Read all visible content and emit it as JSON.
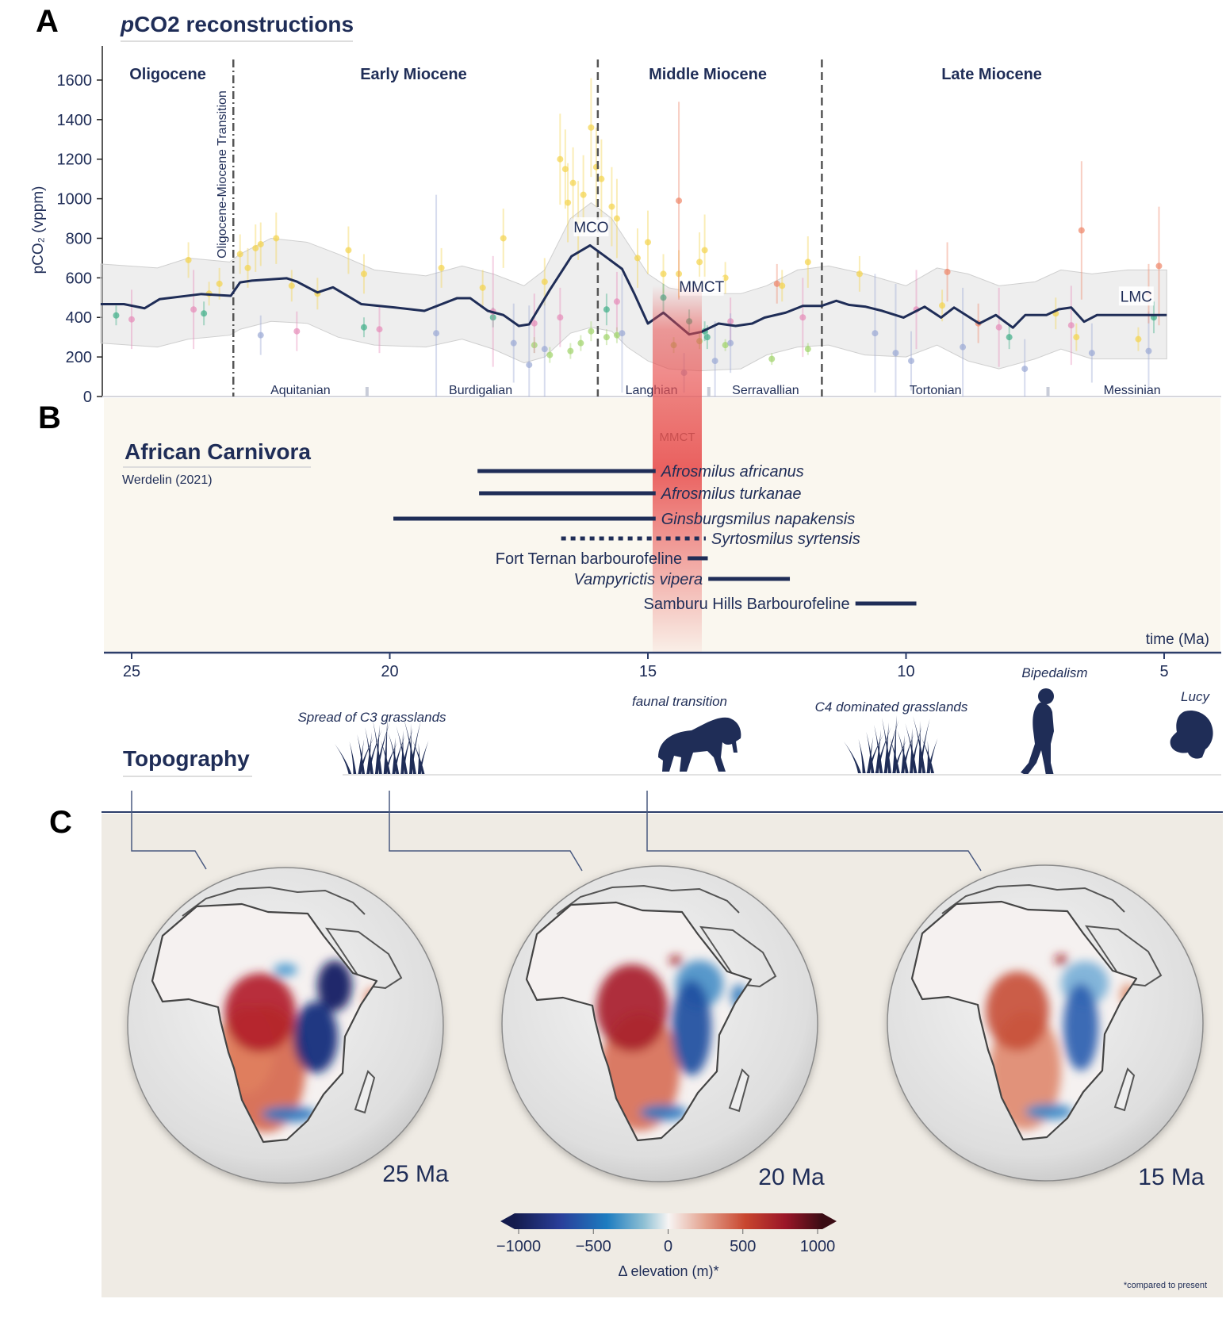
{
  "panel_labels": {
    "a": "A",
    "b": "B",
    "c": "C"
  },
  "colors": {
    "navy": "#1f2d57",
    "mmct_band": "#e8504f",
    "band": "#d9d9d9",
    "panel_b_bg": "#faf7ef",
    "panel_c_bg": "#efebe4"
  },
  "chart_data": {
    "type": "line",
    "title_italic": "p",
    "title_rest": "CO2 reconstructions",
    "ylabel": "pCO₂ (vppm)",
    "ylim": [
      0,
      1750
    ],
    "yticks": [
      0,
      200,
      400,
      600,
      800,
      1000,
      1200,
      1400,
      1600
    ],
    "x_axis_reversed": true,
    "xlim_ma": [
      25.6,
      4.95
    ],
    "epochs": [
      {
        "label": "Oligocene",
        "age": 24.3
      },
      {
        "label": "Early Miocene",
        "age": 19.54
      },
      {
        "label": "Middle Miocene",
        "age": 13.84
      },
      {
        "label": "Late Miocene",
        "age": 8.34
      }
    ],
    "stages": [
      {
        "label": "Aquitanian",
        "age": 21.73
      },
      {
        "label": "Burdigalian",
        "age": 18.24
      },
      {
        "label": "Langhian",
        "age": 14.93
      },
      {
        "label": "Serravallian",
        "age": 12.72
      },
      {
        "label": "Tortonian",
        "age": 9.43
      },
      {
        "label": "Messinian",
        "age": 5.62
      }
    ],
    "stage_boundaries": [
      20.44,
      13.82,
      7.25
    ],
    "boundaries": [
      {
        "age": 23.03,
        "style": "dash-dot",
        "label": "Oligocene-Miocene Transition"
      },
      {
        "age": 15.97,
        "style": "dashed"
      },
      {
        "age": 11.63,
        "style": "dashed"
      }
    ],
    "annotations": [
      {
        "label": "MCO",
        "age": 16.1,
        "value": 830
      },
      {
        "label": "MMCT",
        "age": 13.96,
        "value": 530
      },
      {
        "label": "LMC",
        "age": 5.54,
        "value": 480
      }
    ],
    "mean": {
      "ages": [
        25.6,
        25.15,
        24.75,
        24.46,
        23.65,
        23.08,
        22.9,
        22.67,
        22.0,
        21.8,
        21.4,
        21.1,
        20.55,
        19.9,
        19.33,
        18.7,
        18.44,
        18.1,
        17.8,
        17.5,
        17.3,
        16.9,
        16.48,
        16.12,
        15.83,
        15.5,
        15.26,
        15.0,
        14.7,
        14.45,
        14.2,
        13.96,
        13.63,
        13.3,
        12.98,
        12.74,
        12.33,
        12.0,
        11.64,
        11.35,
        11.1,
        10.78,
        10.46,
        10.05,
        9.64,
        9.32,
        9.07,
        8.58,
        8.26,
        7.93,
        7.69,
        7.28,
        7.04,
        6.8,
        6.55,
        6.3,
        4.95
      ],
      "values": [
        467,
        467,
        446,
        492,
        518,
        509,
        577,
        586,
        598,
        581,
        526,
        552,
        467,
        450,
        433,
        497,
        497,
        433,
        412,
        357,
        365,
        539,
        709,
        764,
        709,
        645,
        518,
        369,
        424,
        369,
        314,
        327,
        369,
        357,
        369,
        399,
        424,
        458,
        458,
        484,
        463,
        454,
        433,
        399,
        454,
        399,
        450,
        369,
        412,
        348,
        412,
        412,
        441,
        450,
        378,
        412,
        412
      ]
    },
    "uncertainty_band": {
      "ages": [
        25.6,
        24.5,
        23.9,
        23.1,
        22.9,
        22.3,
        21.6,
        21.0,
        20.3,
        19.3,
        18.6,
        18.0,
        17.4,
        17.0,
        16.5,
        16.1,
        15.7,
        15.4,
        15.0,
        14.6,
        14.0,
        13.2,
        12.7,
        12.1,
        11.5,
        10.8,
        10.0,
        9.4,
        8.8,
        8.2,
        7.5,
        7.0,
        6.4,
        5.7,
        4.95
      ],
      "upper": [
        670,
        650,
        700,
        680,
        720,
        800,
        780,
        720,
        640,
        610,
        660,
        620,
        560,
        640,
        900,
        980,
        900,
        780,
        620,
        550,
        520,
        520,
        560,
        640,
        660,
        620,
        560,
        650,
        620,
        560,
        580,
        640,
        620,
        640,
        640
      ],
      "lower": [
        270,
        250,
        290,
        310,
        340,
        380,
        370,
        300,
        260,
        250,
        290,
        240,
        170,
        200,
        320,
        350,
        330,
        250,
        180,
        140,
        130,
        140,
        210,
        250,
        260,
        210,
        200,
        260,
        180,
        140,
        190,
        240,
        190,
        190,
        190
      ]
    },
    "proxy_groups": [
      {
        "color": "#f3d34a",
        "points": [
          [
            23.9,
            690,
            90
          ],
          [
            23.5,
            520,
            60
          ],
          [
            23.3,
            570,
            80
          ],
          [
            22.9,
            720,
            100
          ],
          [
            22.75,
            650,
            100
          ],
          [
            22.6,
            750,
            120
          ],
          [
            22.5,
            770,
            110
          ],
          [
            22.2,
            800,
            130
          ],
          [
            21.9,
            560,
            80
          ],
          [
            21.4,
            520,
            80
          ],
          [
            20.8,
            740,
            120
          ],
          [
            20.5,
            620,
            100
          ],
          [
            19.0,
            650,
            100
          ],
          [
            18.2,
            550,
            90
          ],
          [
            17.8,
            800,
            150
          ],
          [
            17.0,
            580,
            120
          ],
          [
            16.7,
            1200,
            230
          ],
          [
            16.6,
            1150,
            200
          ],
          [
            16.55,
            980,
            200
          ],
          [
            16.45,
            1080,
            180
          ],
          [
            16.35,
            890,
            200
          ],
          [
            16.25,
            1020,
            200
          ],
          [
            16.1,
            1360,
            250
          ],
          [
            16.0,
            1160,
            200
          ],
          [
            15.9,
            1100,
            200
          ],
          [
            15.7,
            960,
            200
          ],
          [
            15.6,
            900,
            200
          ],
          [
            15.2,
            700,
            150
          ],
          [
            15.0,
            780,
            160
          ],
          [
            14.7,
            620,
            100
          ],
          [
            14.4,
            620,
            120
          ],
          [
            14.0,
            680,
            150
          ],
          [
            13.9,
            740,
            180
          ],
          [
            13.5,
            600,
            80
          ],
          [
            12.4,
            560,
            80
          ],
          [
            11.9,
            680,
            130
          ],
          [
            10.9,
            620,
            90
          ],
          [
            9.3,
            460,
            80
          ],
          [
            7.1,
            420,
            80
          ],
          [
            5.5,
            290,
            60
          ],
          [
            6.7,
            300,
            70
          ]
        ]
      },
      {
        "color": "#9fd36a",
        "points": [
          [
            17.2,
            260,
            40
          ],
          [
            16.9,
            210,
            40
          ],
          [
            16.5,
            230,
            40
          ],
          [
            16.3,
            270,
            40
          ],
          [
            16.1,
            330,
            50
          ],
          [
            15.8,
            300,
            40
          ],
          [
            15.6,
            310,
            40
          ],
          [
            14.5,
            260,
            40
          ],
          [
            14.0,
            280,
            40
          ],
          [
            13.5,
            260,
            30
          ],
          [
            12.6,
            190,
            30
          ],
          [
            11.9,
            240,
            30
          ]
        ]
      },
      {
        "color": "#3fae88",
        "points": [
          [
            25.3,
            410,
            50
          ],
          [
            23.6,
            420,
            60
          ],
          [
            20.5,
            350,
            50
          ],
          [
            18.0,
            400,
            50
          ],
          [
            15.8,
            440,
            80
          ],
          [
            14.7,
            500,
            70
          ],
          [
            14.2,
            380,
            60
          ],
          [
            13.9,
            330,
            50
          ],
          [
            13.85,
            300,
            60
          ],
          [
            8.0,
            300,
            60
          ],
          [
            5.2,
            400,
            80
          ]
        ]
      },
      {
        "color": "#e68ab8",
        "points": [
          [
            25.0,
            390,
            150
          ],
          [
            23.8,
            440,
            200
          ],
          [
            21.8,
            330,
            100
          ],
          [
            20.2,
            340,
            120
          ],
          [
            18.0,
            430,
            280
          ],
          [
            17.2,
            370,
            150
          ],
          [
            16.7,
            400,
            150
          ],
          [
            15.6,
            480,
            150
          ],
          [
            13.4,
            380,
            120
          ],
          [
            12.0,
            400,
            200
          ],
          [
            9.8,
            440,
            200
          ],
          [
            8.2,
            350,
            200
          ],
          [
            6.8,
            360,
            200
          ]
        ]
      },
      {
        "color": "#9aa8d4",
        "points": [
          [
            22.5,
            310,
            100
          ],
          [
            19.1,
            320,
            700
          ],
          [
            17.6,
            270,
            200
          ],
          [
            17.3,
            160,
            300
          ],
          [
            17.0,
            240,
            250
          ],
          [
            15.5,
            320,
            300
          ],
          [
            14.3,
            120,
            100
          ],
          [
            13.7,
            180,
            200
          ],
          [
            13.4,
            270,
            150
          ],
          [
            10.6,
            320,
            300
          ],
          [
            10.2,
            220,
            350
          ],
          [
            9.9,
            180,
            150
          ],
          [
            8.9,
            250,
            300
          ],
          [
            7.7,
            140,
            150
          ],
          [
            6.4,
            220,
            150
          ],
          [
            5.3,
            230,
            200
          ]
        ]
      },
      {
        "color": "#ee8466",
        "points": [
          [
            14.4,
            990,
            500
          ],
          [
            12.5,
            570,
            100
          ],
          [
            9.2,
            630,
            150
          ],
          [
            8.6,
            370,
            100
          ],
          [
            6.6,
            840,
            350
          ],
          [
            5.1,
            660,
            300
          ],
          [
            5.3,
            520,
            150
          ]
        ]
      }
    ]
  },
  "carnivora": {
    "title": "African Carnivora",
    "source": "Werdelin (2021)",
    "mmct_label": "MMCT",
    "time_label": "time (Ma)",
    "taxa": [
      {
        "name": "Afrosmilus africanus",
        "start": 18.3,
        "end": 14.85,
        "italic": true,
        "dotted": false,
        "label_side": "right"
      },
      {
        "name": "Afrosmilus turkanae",
        "start": 18.27,
        "end": 14.85,
        "italic": true,
        "dotted": false,
        "label_side": "right"
      },
      {
        "name": "Ginsburgsmilus napakensis",
        "start": 19.93,
        "end": 14.85,
        "italic": true,
        "dotted": false,
        "label_side": "right"
      },
      {
        "name": "Syrtosmilus syrtensis",
        "start": 16.68,
        "end": 13.88,
        "italic": true,
        "dotted": true,
        "label_side": "right"
      },
      {
        "name": "Fort Ternan barbourofeline",
        "start": 14.23,
        "end": 13.84,
        "italic": false,
        "dotted": false,
        "label_side": "left"
      },
      {
        "name": "Vampyrictis  vipera",
        "start": 13.83,
        "end": 12.25,
        "italic": true,
        "dotted": false,
        "label_side": "left"
      },
      {
        "name": "Samburu Hills Barbourofeline",
        "start": 10.98,
        "end": 9.8,
        "italic": false,
        "dotted": false,
        "label_side": "left"
      }
    ]
  },
  "timeline": {
    "ticks": [
      25,
      20,
      15,
      10,
      5
    ],
    "events": [
      {
        "label": "Spread of C3 grasslands",
        "icon": "grass-icon"
      },
      {
        "label": "faunal transition",
        "icon": "sabertooth-cat-icon"
      },
      {
        "label": "C4 dominated grasslands",
        "icon": "grass-icon"
      },
      {
        "label": "Bipedalism",
        "icon": "hominin-icon"
      },
      {
        "label": "Lucy",
        "icon": "hominin-skull-icon"
      }
    ]
  },
  "topography": {
    "title": "Topography",
    "globes": [
      {
        "label": "25 Ma",
        "age": 25
      },
      {
        "label": "20 Ma",
        "age": 20
      },
      {
        "label": "15 Ma",
        "age": 15
      }
    ],
    "colorbar": {
      "ticks": [
        "−1000",
        "−500",
        "0",
        "500",
        "1000"
      ],
      "range": [
        -1000,
        1000
      ],
      "label": "Δ elevation (m)*",
      "colormap": "blue-white-red diverging"
    },
    "footnote": "*compared to present"
  }
}
